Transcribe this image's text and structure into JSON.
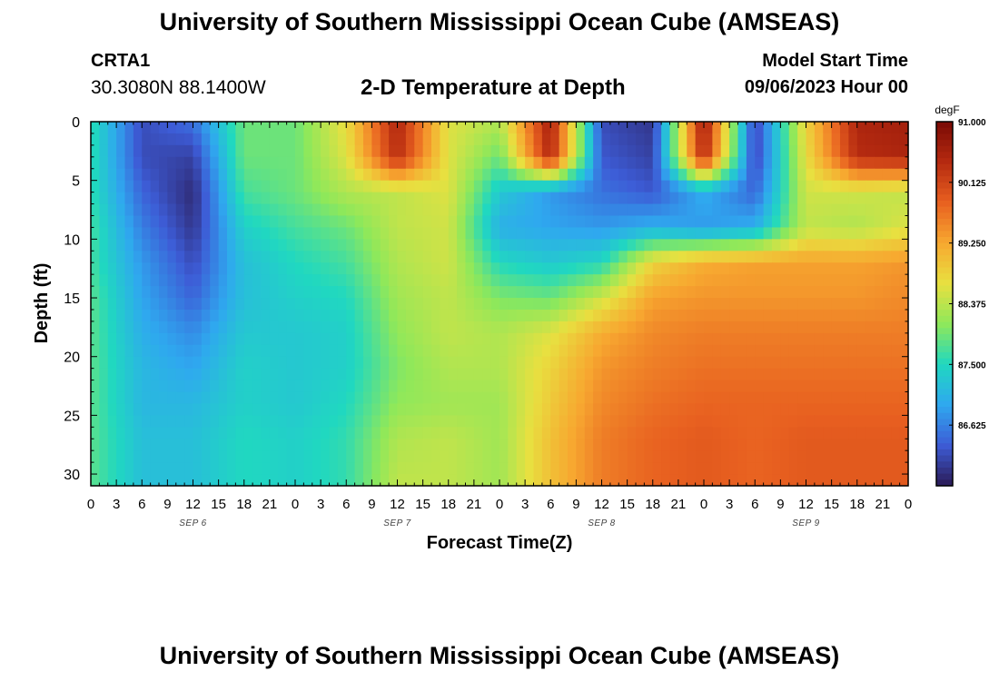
{
  "header": {
    "title": "University of Southern Mississippi Ocean Cube (AMSEAS)",
    "station_id": "CRTA1",
    "coords": "30.3080N  88.1400W",
    "chart_title": "2-D Temperature at Depth",
    "start_label": "Model Start Time",
    "start_value": "09/06/2023 Hour 00"
  },
  "footer": {
    "title": "University of Southern Mississippi Ocean Cube (AMSEAS)"
  },
  "chart_data": {
    "type": "heatmap",
    "title": "2-D Temperature at Depth",
    "xlabel": "Forecast Time(Z)",
    "ylabel": "Depth (ft)",
    "x_hours": [
      0,
      6,
      12,
      18,
      24,
      30,
      36,
      42,
      48,
      54,
      60,
      66,
      72,
      78,
      84,
      90,
      96
    ],
    "x_tick_labels": [
      "0",
      "3",
      "6",
      "9",
      "12",
      "15",
      "18",
      "21",
      "0",
      "3",
      "6",
      "9",
      "12",
      "15",
      "18",
      "21",
      "0",
      "3",
      "6",
      "9",
      "12",
      "15",
      "18",
      "21",
      "0",
      "3",
      "6",
      "9",
      "12",
      "15",
      "18",
      "21",
      "0"
    ],
    "day_labels": [
      "SEP 6",
      "SEP 7",
      "SEP 8",
      "SEP 9"
    ],
    "depths_ft": [
      0,
      3,
      6,
      9,
      12,
      15,
      18,
      21,
      24,
      27,
      31
    ],
    "y_tick_labels": [
      "0",
      "5",
      "10",
      "15",
      "20",
      "25",
      "30"
    ],
    "ylim": [
      0,
      31
    ],
    "y_inverted": true,
    "colorbar": {
      "unit": "degF",
      "min": 85.75,
      "max": 91.0,
      "tick_labels": [
        "91.000",
        "90.125",
        "89.250",
        "88.375",
        "87.500",
        "86.625"
      ],
      "colors": [
        "#2b1a55",
        "#3d5cd6",
        "#2fa8ef",
        "#20d8c0",
        "#8fe85a",
        "#e8e040",
        "#f7a830",
        "#e86020",
        "#b52a10",
        "#7a0a05"
      ]
    },
    "temperatures": [
      [
        87.6,
        86.2,
        86.5,
        87.9,
        87.9,
        88.7,
        90.5,
        88.6,
        88.3,
        90.6,
        86.2,
        86.0,
        90.7,
        86.1,
        88.8,
        90.5,
        90.6
      ],
      [
        87.6,
        86.2,
        86.1,
        87.9,
        87.9,
        88.6,
        90.4,
        88.6,
        87.9,
        90.5,
        86.3,
        86.1,
        90.5,
        86.1,
        88.7,
        90.4,
        90.5
      ],
      [
        87.6,
        86.4,
        85.9,
        87.7,
        87.9,
        88.3,
        88.4,
        88.6,
        87.3,
        86.8,
        86.5,
        86.3,
        87.0,
        86.4,
        88.5,
        88.5,
        88.4
      ],
      [
        87.7,
        86.6,
        86.0,
        87.4,
        87.7,
        87.9,
        88.4,
        88.5,
        87.0,
        86.9,
        86.8,
        87.0,
        86.8,
        87.0,
        88.4,
        88.3,
        88.6
      ],
      [
        87.7,
        86.8,
        86.2,
        87.2,
        87.5,
        87.7,
        88.3,
        88.5,
        87.5,
        87.3,
        87.5,
        88.8,
        89.2,
        89.3,
        89.3,
        89.3,
        89.4
      ],
      [
        87.8,
        86.9,
        86.4,
        87.2,
        87.4,
        87.5,
        88.2,
        88.4,
        88.0,
        87.9,
        88.5,
        89.3,
        89.4,
        89.4,
        89.4,
        89.4,
        89.5
      ],
      [
        87.8,
        87.0,
        86.7,
        87.3,
        87.3,
        87.4,
        88.1,
        88.4,
        88.3,
        88.6,
        89.2,
        89.5,
        89.6,
        89.6,
        89.6,
        89.6,
        89.6
      ],
      [
        87.8,
        87.1,
        86.9,
        87.4,
        87.3,
        87.4,
        88.0,
        88.3,
        88.3,
        88.8,
        89.4,
        89.6,
        89.7,
        89.7,
        89.7,
        89.7,
        89.7
      ],
      [
        87.8,
        87.1,
        87.1,
        87.4,
        87.3,
        87.5,
        88.1,
        88.2,
        88.2,
        88.9,
        89.5,
        89.7,
        89.8,
        89.8,
        89.8,
        89.8,
        89.8
      ],
      [
        87.8,
        87.2,
        87.2,
        87.5,
        87.4,
        87.6,
        88.3,
        88.4,
        88.2,
        89.0,
        89.6,
        89.8,
        89.9,
        89.8,
        89.9,
        89.9,
        89.9
      ],
      [
        87.8,
        87.2,
        87.2,
        87.5,
        87.4,
        87.6,
        88.4,
        88.4,
        88.2,
        89.0,
        89.6,
        89.8,
        89.9,
        89.8,
        89.9,
        89.9,
        89.9
      ]
    ]
  }
}
